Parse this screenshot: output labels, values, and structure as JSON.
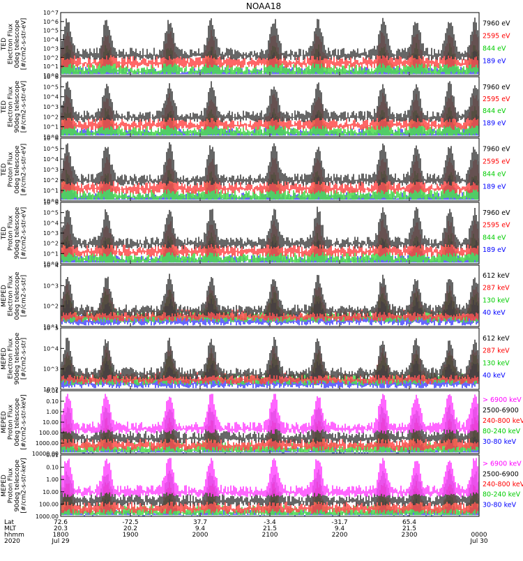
{
  "chart_data": {
    "type": "line",
    "title": "NOAA18",
    "panels": [
      {
        "ylabel": [
          "TED",
          "Electron Flux",
          "0deg telescope",
          "[#/cm2-s-str-eV]"
        ],
        "yscale": "log",
        "ylim": [
          1,
          10000000
        ],
        "ytick_labels": [
          "10^0",
          "10^1",
          "10^2",
          "10^3",
          "10^4",
          "10^5",
          "10^6",
          "10^7"
        ],
        "legend": [
          {
            "label": "7960 eV",
            "color": "#000000"
          },
          {
            "label": "2595 eV",
            "color": "#ff0000"
          },
          {
            "label": "844 eV",
            "color": "#00cc00"
          },
          {
            "label": "189 eV",
            "color": "#0000ff"
          }
        ]
      },
      {
        "ylabel": [
          "TED",
          "Electron Flux",
          "90deg telescope",
          "[#/cm2-s-str-eV]"
        ],
        "yscale": "log",
        "ylim": [
          1,
          1000000
        ],
        "ytick_labels": [
          "10^0",
          "10^1",
          "10^2",
          "10^3",
          "10^4",
          "10^5",
          "10^6"
        ],
        "legend": [
          {
            "label": "7960 eV",
            "color": "#000000"
          },
          {
            "label": "2595 eV",
            "color": "#ff0000"
          },
          {
            "label": "844 eV",
            "color": "#00cc00"
          },
          {
            "label": "189 eV",
            "color": "#0000ff"
          }
        ]
      },
      {
        "ylabel": [
          "TED",
          "Proton Flux",
          "0deg telescope",
          "[#/cm2-s-str-eV]"
        ],
        "yscale": "log",
        "ylim": [
          1,
          1000000
        ],
        "ytick_labels": [
          "10^0",
          "10^1",
          "10^2",
          "10^3",
          "10^4",
          "10^5",
          "10^6"
        ],
        "legend": [
          {
            "label": "7960 eV",
            "color": "#000000"
          },
          {
            "label": "2595 eV",
            "color": "#ff0000"
          },
          {
            "label": "844 eV",
            "color": "#00cc00"
          },
          {
            "label": "189 eV",
            "color": "#0000ff"
          }
        ]
      },
      {
        "ylabel": [
          "TED",
          "Proton Flux",
          "90deg telescope",
          "[#/cm2-s-str-eV]"
        ],
        "yscale": "log",
        "ylim": [
          1,
          1000000
        ],
        "ytick_labels": [
          "10^0",
          "10^1",
          "10^2",
          "10^3",
          "10^4",
          "10^5",
          "10^6"
        ],
        "legend": [
          {
            "label": "7960 eV",
            "color": "#000000"
          },
          {
            "label": "2595 eV",
            "color": "#ff0000"
          },
          {
            "label": "844 eV",
            "color": "#00cc00"
          },
          {
            "label": "189 eV",
            "color": "#0000ff"
          }
        ]
      },
      {
        "ylabel": [
          "MEPED",
          "Electron Flux",
          "0deg telescope",
          "[#/cm2-s-str]"
        ],
        "yscale": "log",
        "ylim": [
          10,
          100000
        ],
        "ytick_labels": [
          "10^1",
          "10^2",
          "10^3",
          "10^4"
        ],
        "legend": [
          {
            "label": "612 keV",
            "color": "#000000"
          },
          {
            "label": "287 keV",
            "color": "#ff0000"
          },
          {
            "label": "130 keV",
            "color": "#00cc00"
          },
          {
            "label": "40 keV",
            "color": "#0000ff"
          }
        ]
      },
      {
        "ylabel": [
          "MEPED",
          "Electron Flux",
          "90deg telescope",
          "[#/cm2-s-str]"
        ],
        "yscale": "log",
        "ylim": [
          10,
          100000
        ],
        "ytick_labels": [
          "10^2",
          "10^3",
          "10^4",
          "10^5"
        ],
        "legend": [
          {
            "label": "612 keV",
            "color": "#000000"
          },
          {
            "label": "287 keV",
            "color": "#ff0000"
          },
          {
            "label": "130 keV",
            "color": "#00cc00"
          },
          {
            "label": "40 keV",
            "color": "#0000ff"
          }
        ]
      },
      {
        "ylabel": [
          "MEPED",
          "Proton Flux",
          "0deg telescope",
          "[#/cm2-s-str-keV]"
        ],
        "yscale": "log",
        "ylim": [
          0.01,
          10000
        ],
        "ytick_labels": [
          "10000.00",
          "1000.00",
          "100.00",
          "10.00",
          "1.00",
          "0.10",
          "0.01"
        ],
        "legend": [
          {
            "label": "> 6900 keV",
            "color": "#ff00ff"
          },
          {
            "label": "2500-6900",
            "color": "#000000"
          },
          {
            "label": "240-800 keV",
            "color": "#ff0000"
          },
          {
            "label": "80-240 keV",
            "color": "#00cc00"
          },
          {
            "label": "30-80 keV",
            "color": "#0000ff"
          }
        ]
      },
      {
        "ylabel": [
          "MEPED",
          "Proton Flux",
          "90deg telescope",
          "[#/cm2-s-str-keV]"
        ],
        "yscale": "log",
        "ylim": [
          0.01,
          10000
        ],
        "ytick_labels": [
          "1000.00",
          "100.00",
          "10.00",
          "1.00",
          "0.10",
          "0.01"
        ],
        "legend": [
          {
            "label": "> 6900 keV",
            "color": "#ff00ff"
          },
          {
            "label": "2500-6900",
            "color": "#000000"
          },
          {
            "label": "240-800 keV",
            "color": "#ff0000"
          },
          {
            "label": "80-240 keV",
            "color": "#00cc00"
          },
          {
            "label": "30-80 keV",
            "color": "#0000ff"
          }
        ]
      }
    ],
    "x_axis": {
      "row_labels": [
        "Lat",
        "MLT",
        "hhmm",
        "2020"
      ],
      "ticks": [
        {
          "lat": "72.6",
          "mlt": "20.3",
          "hhmm": "1800",
          "date": "Jul 29",
          "frac": 0.0
        },
        {
          "lat": "-72.5",
          "mlt": "20.2",
          "hhmm": "1900",
          "date": "",
          "frac": 0.1667
        },
        {
          "lat": "37.7",
          "mlt": "9.4",
          "hhmm": "2000",
          "date": "",
          "frac": 0.3333
        },
        {
          "lat": "-3.4",
          "mlt": "21.5",
          "hhmm": "2100",
          "date": "",
          "frac": 0.5
        },
        {
          "lat": "-31.7",
          "mlt": "9.4",
          "hhmm": "2200",
          "date": "",
          "frac": 0.6667
        },
        {
          "lat": "65.4",
          "mlt": "21.5",
          "hhmm": "2300",
          "date": "",
          "frac": 0.8333
        },
        {
          "lat": "",
          "mlt": "",
          "hhmm": "0000",
          "date": "Jul 30",
          "frac": 1.0
        }
      ]
    },
    "pass_centers_frac": [
      0.016,
      0.11,
      0.26,
      0.36,
      0.51,
      0.615,
      0.77,
      0.85,
      0.93,
      0.99
    ]
  }
}
